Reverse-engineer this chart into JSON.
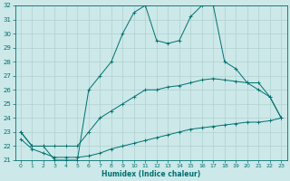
{
  "xlabel": "Humidex (Indice chaleur)",
  "background_color": "#cce8e8",
  "grid_color": "#b0d0d0",
  "line_color": "#007070",
  "xlim": [
    -0.5,
    23.5
  ],
  "ylim": [
    21,
    32
  ],
  "xticks": [
    0,
    1,
    2,
    3,
    4,
    5,
    6,
    7,
    8,
    9,
    10,
    11,
    12,
    13,
    14,
    15,
    16,
    17,
    18,
    19,
    20,
    21,
    22,
    23
  ],
  "yticks": [
    21,
    22,
    23,
    24,
    25,
    26,
    27,
    28,
    29,
    30,
    31,
    32
  ],
  "series": [
    {
      "x": [
        0,
        1,
        2,
        3,
        4,
        5,
        6,
        7,
        8,
        9,
        10,
        11,
        12,
        13,
        14,
        15,
        16,
        17,
        18,
        19,
        20,
        21,
        22,
        23
      ],
      "y": [
        23,
        22,
        22,
        21,
        21,
        21,
        26,
        27,
        28,
        30,
        31.5,
        32,
        29.5,
        29.3,
        29.5,
        31.2,
        32,
        32,
        28,
        27.5,
        26.5,
        26.5,
        25.5,
        24
      ]
    },
    {
      "x": [
        0,
        1,
        2,
        3,
        4,
        5,
        6,
        7,
        8,
        9,
        10,
        11,
        12,
        13,
        14,
        15,
        16,
        17,
        18,
        19,
        20,
        21,
        22,
        23
      ],
      "y": [
        23,
        22,
        22,
        22,
        22,
        22,
        23,
        24,
        24.5,
        25,
        25.5,
        26,
        26,
        26.2,
        26.3,
        26.5,
        26.7,
        26.8,
        26.7,
        26.6,
        26.5,
        26,
        25.5,
        24
      ]
    },
    {
      "x": [
        0,
        1,
        2,
        3,
        4,
        5,
        6,
        7,
        8,
        9,
        10,
        11,
        12,
        13,
        14,
        15,
        16,
        17,
        18,
        19,
        20,
        21,
        22,
        23
      ],
      "y": [
        22.5,
        21.8,
        21.5,
        21.2,
        21.2,
        21.2,
        21.3,
        21.5,
        21.8,
        22,
        22.2,
        22.4,
        22.6,
        22.8,
        23,
        23.2,
        23.3,
        23.4,
        23.5,
        23.6,
        23.7,
        23.7,
        23.8,
        24
      ]
    }
  ]
}
